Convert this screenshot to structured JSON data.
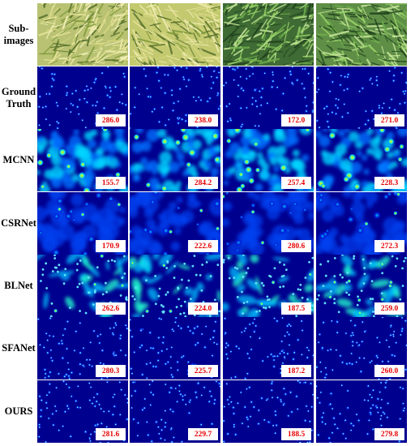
{
  "columns": [
    "col-1",
    "col-2",
    "col-3",
    "col-4"
  ],
  "rows": [
    {
      "key": "sub-images",
      "label": "Sub-\nimages",
      "type": "photo",
      "counts": []
    },
    {
      "key": "ground-truth",
      "label": "Ground\nTruth",
      "type": "density-sparse",
      "counts": [
        "286.0",
        "238.0",
        "172.0",
        "271.0"
      ]
    },
    {
      "key": "mcnn",
      "label": "MCNN",
      "type": "density-blobby",
      "counts": [
        "155.7",
        "284.2",
        "257.4",
        "228.3"
      ]
    },
    {
      "key": "csrnet",
      "label": "CSRNet",
      "type": "density-smooth",
      "counts": [
        "170.9",
        "222.6",
        "280.6",
        "272.3"
      ]
    },
    {
      "key": "blnet",
      "label": "BLNet",
      "type": "density-patchy",
      "counts": [
        "262.6",
        "224.0",
        "187.5",
        "259.0"
      ]
    },
    {
      "key": "sfanet",
      "label": "SFANet",
      "type": "density-sparse",
      "counts": [
        "280.3",
        "225.7",
        "187.2",
        "260.0"
      ]
    },
    {
      "key": "ours",
      "label": "OURS",
      "type": "density-sparse",
      "counts": [
        "281.6",
        "229.7",
        "188.5",
        "279.8"
      ]
    }
  ],
  "colors": {
    "density_bg": "#00008f",
    "density_low": "#0016d8",
    "density_mid": "#00c8ff",
    "density_high": "#ffe800",
    "count_text": "#e60000",
    "photo_tones": [
      "#b8c272",
      "#c3c96f",
      "#3f6b34",
      "#5f8f46"
    ]
  }
}
